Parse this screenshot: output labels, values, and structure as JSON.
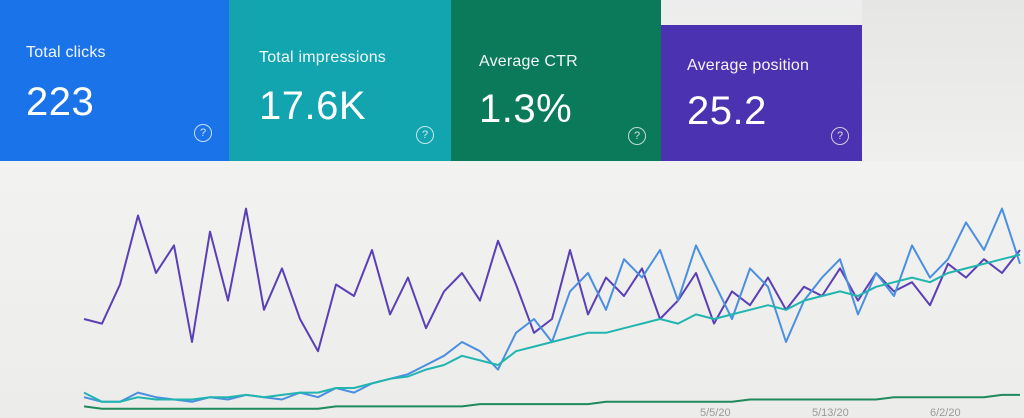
{
  "metrics": [
    {
      "key": "clicks",
      "label": "Total clicks",
      "value": "223",
      "color": "#1a73e8",
      "help": "?"
    },
    {
      "key": "impressions",
      "label": "Total impressions",
      "value": "17.6K",
      "color": "#12a4af",
      "help": "?"
    },
    {
      "key": "ctr",
      "label": "Average CTR",
      "value": "1.3%",
      "color": "#0b7a5a",
      "help": "?"
    },
    {
      "key": "position",
      "label": "Average position",
      "value": "25.2",
      "color": "#4a32b0",
      "help": "?"
    }
  ],
  "chart_data": {
    "type": "line",
    "series": [
      {
        "color": "#5b3fb5",
        "values": [
          40,
          38,
          55,
          85,
          60,
          72,
          30,
          78,
          48,
          88,
          44,
          62,
          40,
          26,
          55,
          50,
          70,
          42,
          58,
          36,
          52,
          60,
          48,
          74,
          55,
          34,
          40,
          70,
          42,
          58,
          50,
          62,
          40,
          48,
          60,
          38,
          52,
          46,
          58,
          44,
          54,
          50,
          62,
          48,
          60,
          52,
          56,
          46,
          64,
          58,
          66,
          60,
          70
        ]
      },
      {
        "color": "#4a8fe0",
        "values": [
          6,
          4,
          4,
          8,
          6,
          5,
          4,
          6,
          5,
          7,
          6,
          5,
          8,
          6,
          10,
          8,
          12,
          14,
          16,
          20,
          24,
          30,
          26,
          18,
          34,
          40,
          30,
          52,
          60,
          44,
          66,
          58,
          70,
          48,
          72,
          56,
          40,
          62,
          54,
          30,
          48,
          58,
          66,
          42,
          60,
          50,
          72,
          58,
          66,
          82,
          70,
          88,
          64
        ]
      },
      {
        "color": "#22b5b0",
        "values": [
          8,
          4,
          4,
          6,
          5,
          5,
          5,
          6,
          6,
          7,
          6,
          7,
          8,
          8,
          10,
          10,
          12,
          14,
          15,
          18,
          20,
          24,
          22,
          20,
          26,
          28,
          30,
          32,
          34,
          34,
          36,
          38,
          40,
          38,
          42,
          40,
          42,
          44,
          46,
          44,
          48,
          50,
          52,
          50,
          54,
          56,
          58,
          56,
          60,
          62,
          64,
          66,
          68
        ]
      },
      {
        "color": "#1f8a5c",
        "values": [
          2,
          1,
          1,
          1,
          1,
          1,
          1,
          1,
          1,
          1,
          1,
          1,
          1,
          1,
          2,
          2,
          2,
          2,
          2,
          2,
          2,
          2,
          3,
          3,
          3,
          3,
          3,
          3,
          3,
          4,
          4,
          4,
          4,
          4,
          4,
          4,
          4,
          5,
          5,
          5,
          5,
          5,
          5,
          5,
          5,
          6,
          6,
          6,
          6,
          6,
          6,
          7,
          7
        ]
      }
    ],
    "x_tick_labels": [
      "5/5/20",
      "5/13/20",
      "6/2/20"
    ],
    "grid": false,
    "legend": "none"
  }
}
